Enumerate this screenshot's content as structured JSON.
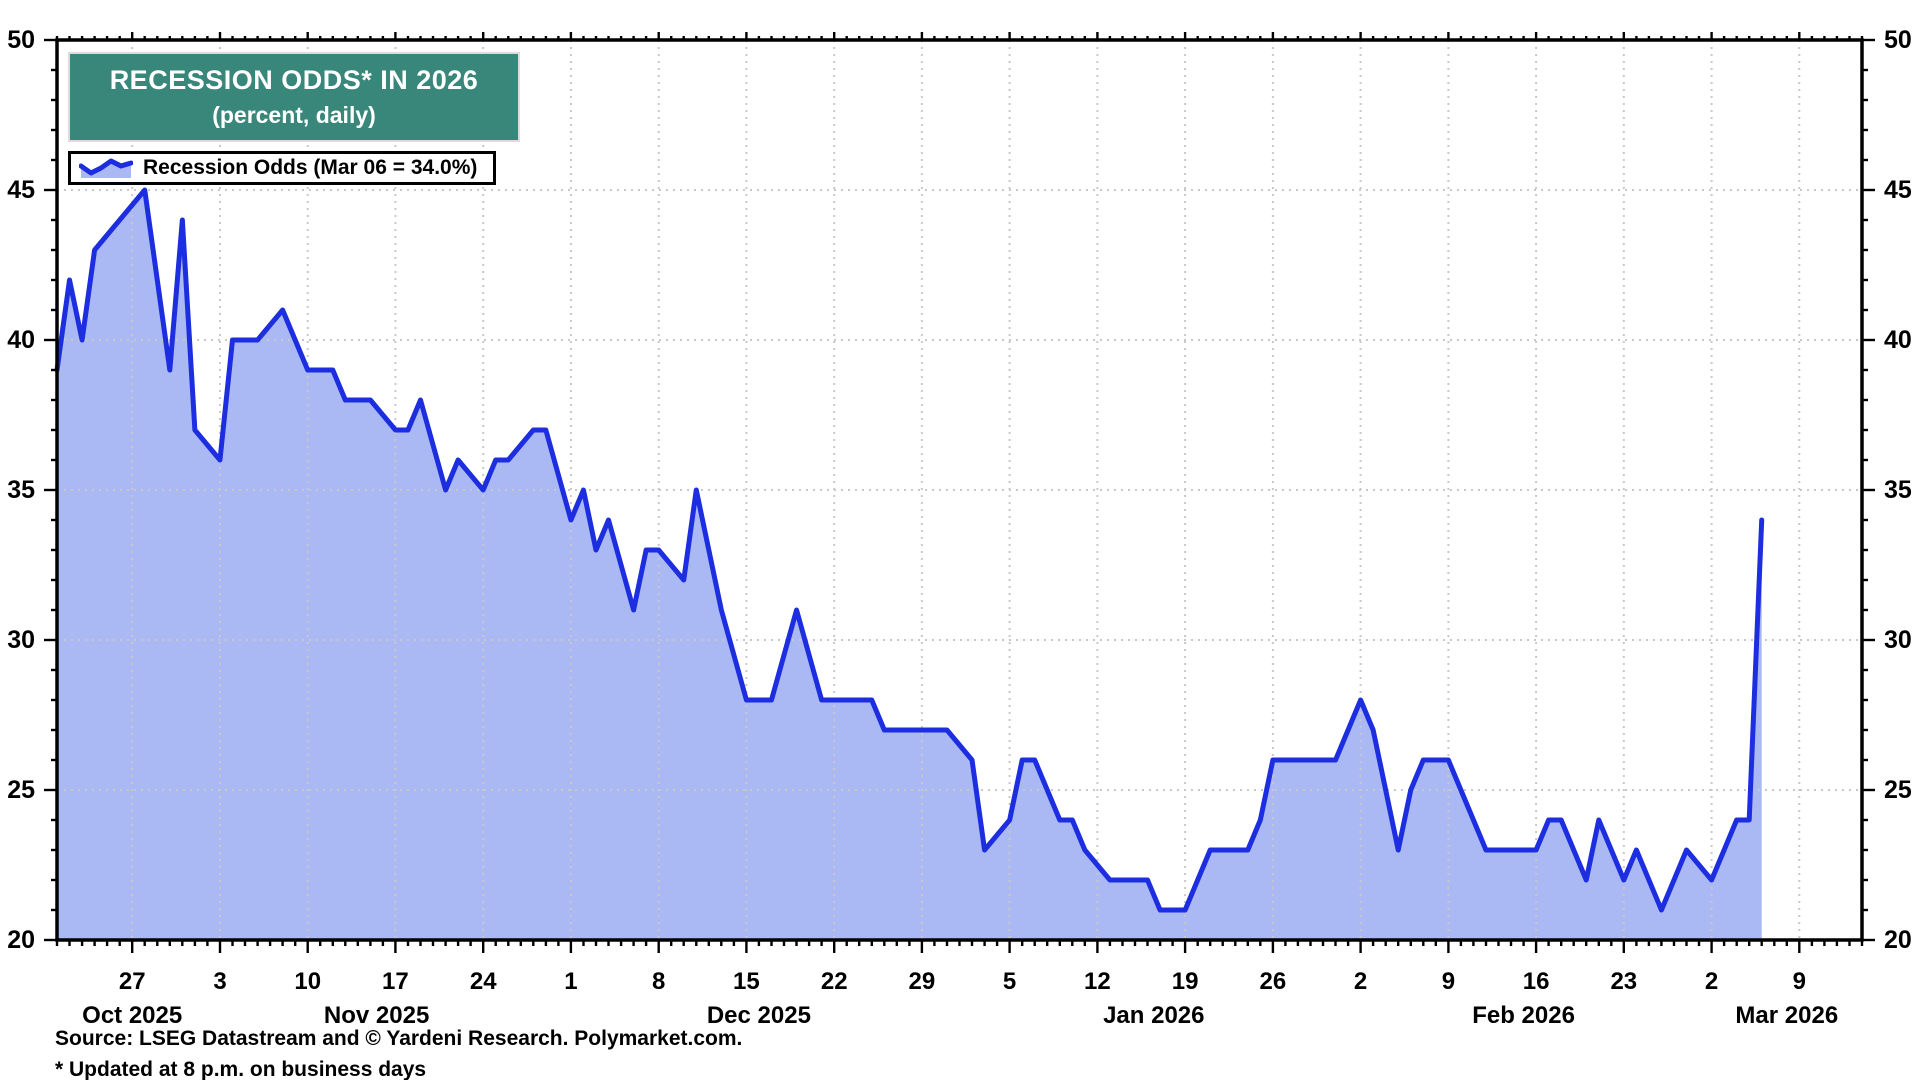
{
  "chart_data": {
    "type": "area",
    "title": "RECESSION ODDS* IN 2026",
    "subtitle": "(percent, daily)",
    "legend_label": "Recession Odds (Mar 06 = 34.0%)",
    "last_point": {
      "date": "Mar 06",
      "value": 34.0
    },
    "frequency": "daily",
    "start_date": "2025-10-21",
    "end_date": "2026-03-06",
    "ylabel": "percent",
    "grid": true,
    "legend_position": "top-left",
    "y_axis": {
      "min": 20,
      "max": 50,
      "major_step": 5,
      "minor_step": 1,
      "labels": [
        20,
        25,
        30,
        35,
        40,
        45,
        50
      ],
      "both_sides": true
    },
    "x_axis": {
      "domain_days": 144,
      "ticks_major": [
        {
          "i": 6,
          "label": "27"
        },
        {
          "i": 13,
          "label": "3"
        },
        {
          "i": 20,
          "label": "10"
        },
        {
          "i": 27,
          "label": "17"
        },
        {
          "i": 34,
          "label": "24"
        },
        {
          "i": 41,
          "label": "1"
        },
        {
          "i": 48,
          "label": "8"
        },
        {
          "i": 55,
          "label": "15"
        },
        {
          "i": 62,
          "label": "22"
        },
        {
          "i": 69,
          "label": "29"
        },
        {
          "i": 76,
          "label": "5"
        },
        {
          "i": 83,
          "label": "12"
        },
        {
          "i": 90,
          "label": "19"
        },
        {
          "i": 97,
          "label": "26"
        },
        {
          "i": 104,
          "label": "2"
        },
        {
          "i": 111,
          "label": "9"
        },
        {
          "i": 118,
          "label": "16"
        },
        {
          "i": 125,
          "label": "23"
        },
        {
          "i": 132,
          "label": "2"
        },
        {
          "i": 139,
          "label": "9"
        }
      ],
      "month_labels": [
        {
          "i": 6,
          "label": "Oct 2025"
        },
        {
          "i": 25.5,
          "label": "Nov 2025"
        },
        {
          "i": 56,
          "label": "Dec 2025"
        },
        {
          "i": 87.5,
          "label": "Jan 2026"
        },
        {
          "i": 117,
          "label": "Feb 2026"
        },
        {
          "i": 138,
          "label": "Mar 2026"
        }
      ]
    },
    "series": [
      {
        "name": "Recession Odds",
        "values": [
          39,
          42,
          40,
          43,
          43.5,
          44,
          44.5,
          45,
          42,
          39,
          44,
          37,
          36.5,
          36,
          40,
          40,
          40,
          40.5,
          41,
          40,
          39,
          39,
          39,
          38,
          38,
          38,
          37.5,
          37,
          37,
          38,
          36.5,
          35,
          36,
          35.5,
          35,
          36,
          36,
          36.5,
          37,
          37,
          35.5,
          34,
          35,
          33,
          34,
          32.5,
          31,
          33,
          33,
          32.5,
          32,
          35,
          33,
          31,
          29.5,
          28,
          28,
          28,
          29.5,
          31,
          29.5,
          28,
          28,
          28,
          28,
          28,
          27,
          27,
          27,
          27,
          27,
          27,
          26.5,
          26,
          23,
          23.5,
          24,
          26,
          26,
          25,
          24,
          24,
          23,
          22.5,
          22,
          22,
          22,
          22,
          21,
          21,
          21,
          22,
          23,
          23,
          23,
          23,
          24,
          26,
          26,
          26,
          26,
          26,
          26,
          27,
          28,
          27,
          25,
          23,
          25,
          26,
          26,
          26,
          25,
          24,
          23,
          23,
          23,
          23,
          23,
          24,
          24,
          23,
          22,
          24,
          23,
          22,
          23,
          22,
          21,
          22,
          23,
          22.5,
          22,
          23,
          24,
          24,
          34
        ]
      }
    ],
    "colors": {
      "line": "#1c2ee0",
      "fill": "#aab9f3",
      "grid": "#c8c8c8",
      "frame": "#000000",
      "header_bg": "#38877A",
      "header_text": "#ffffff"
    }
  },
  "footer": {
    "source": "Source: LSEG Datastream and © Yardeni Research. Polymarket.com.",
    "footnote": "* Updated at 8 p.m. on business days"
  }
}
